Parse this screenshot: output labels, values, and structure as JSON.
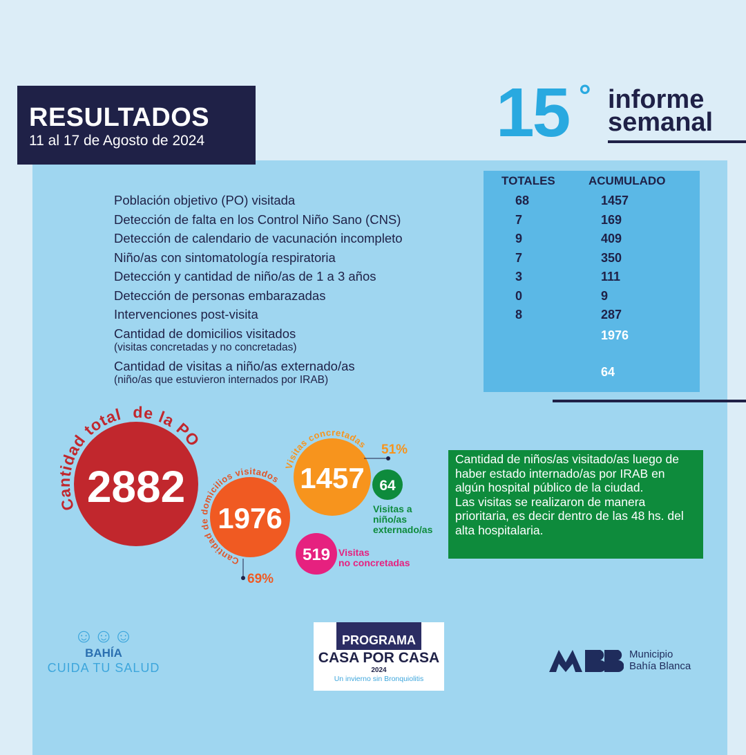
{
  "header": {
    "title": "RESULTADOS",
    "dates": "11 al 17 de Agosto de 2024",
    "report_number": "15",
    "report_degree": "°",
    "report_label_1": "informe",
    "report_label_2": "semanal"
  },
  "table": {
    "col_totales": "TOTALES",
    "col_acumulado": "ACUMULADO",
    "rows": [
      {
        "label": "Población objetivo (PO) visitada",
        "totales": "68",
        "acumulado": "1457"
      },
      {
        "label": "Detección de falta en los Control Niño Sano (CNS)",
        "totales": "7",
        "acumulado": "169"
      },
      {
        "label": "Detección de calendario de vacunación incompleto",
        "totales": "9",
        "acumulado": "409"
      },
      {
        "label": "Niño/as con sintomatología respiratoria",
        "totales": "7",
        "acumulado": "350"
      },
      {
        "label": "Detección y cantidad de niño/as de 1 a 3 años",
        "totales": "3",
        "acumulado": "111"
      },
      {
        "label": "Detección de personas embarazadas",
        "totales": "0",
        "acumulado": "9"
      },
      {
        "label": "Intervenciones post-visita",
        "totales": "8",
        "acumulado": "287"
      },
      {
        "label": "Cantidad de domicilios visitados",
        "sublabel": "(visitas concretadas y no concretadas)",
        "acumulado": "1976"
      },
      {
        "label": "Cantidad de visitas a niño/as externado/as",
        "sublabel": "(niño/as que estuvieron internados por IRAB)",
        "acumulado": "64"
      }
    ]
  },
  "bubbles": {
    "total": {
      "value": "2882",
      "label": "Cantidad total  de la PO",
      "color": "#c1272d"
    },
    "domicilios": {
      "value": "1976",
      "label": "Cantidad de domicilios visitados",
      "percent": "69%",
      "color": "#f05a22"
    },
    "concretadas": {
      "value": "1457",
      "label": "Visitas concretadas",
      "percent": "51%",
      "color": "#f7941d"
    },
    "externados": {
      "value": "64",
      "label_1": "Visitas a",
      "label_2": "niño/as",
      "label_3": "externado/as",
      "color": "#0e8b3c"
    },
    "no_concretadas": {
      "value": "519",
      "label_1": "Visitas",
      "label_2": "no concretadas",
      "color": "#e6217f"
    }
  },
  "note": {
    "text_1": "Cantidad de niños/as visitado/as luego de haber estado internado/as por IRAB en algún hospital público de la ciudad.",
    "text_2": "Las visitas se realizaron de manera prioritaria, es decir dentro de las 48 hs. del alta hospitalaria."
  },
  "footer": {
    "logo1_a": "BAHÍA",
    "logo1_b": "CUIDA TU SALUD",
    "prog_a": "PROGRAMA",
    "prog_b": "CASA POR CASA",
    "prog_year": "2024",
    "prog_sub": "Un invierno sin Bronquiolitis",
    "mbb_a": "Municipio",
    "mbb_b": "Bahía Blanca"
  }
}
